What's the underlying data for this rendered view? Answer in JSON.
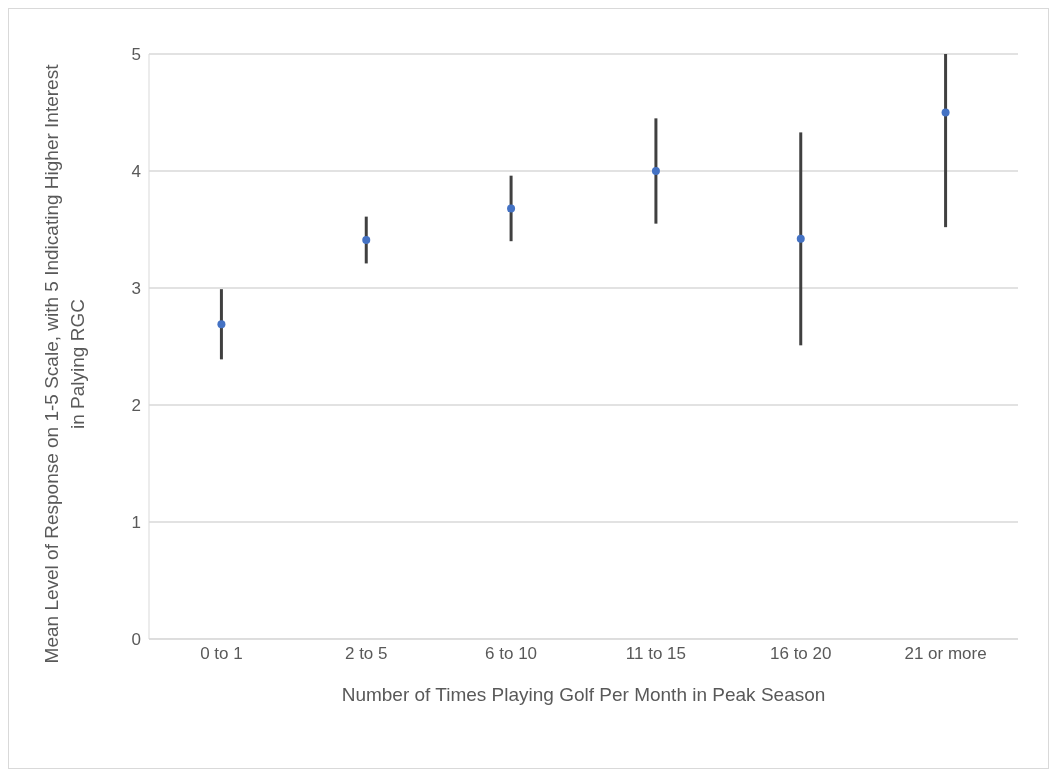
{
  "chart_data": {
    "type": "scatter",
    "xlabel": "Number of Times Playing Golf Per Month in Peak Season",
    "ylabel": "Mean Level of Response on 1-5 Scale, with 5 Indicating Higher Interest in Palying RGC",
    "categories": [
      "0 to 1",
      "2 to 5",
      "6 to 10",
      "11 to 15",
      "16 to 20",
      "21 or more"
    ],
    "series": [
      {
        "color": "#4472c4",
        "values": [
          2.69,
          3.41,
          3.68,
          4.0,
          3.42,
          4.5
        ],
        "errors": [
          0.3,
          0.2,
          0.28,
          0.45,
          0.91,
          [
            3.52,
            5
          ]
        ]
      }
    ],
    "ylim": [
      0,
      5
    ],
    "yticks": [
      0,
      1,
      2,
      3,
      4,
      5
    ],
    "grid": "y",
    "marker": "circle",
    "legend": false
  }
}
